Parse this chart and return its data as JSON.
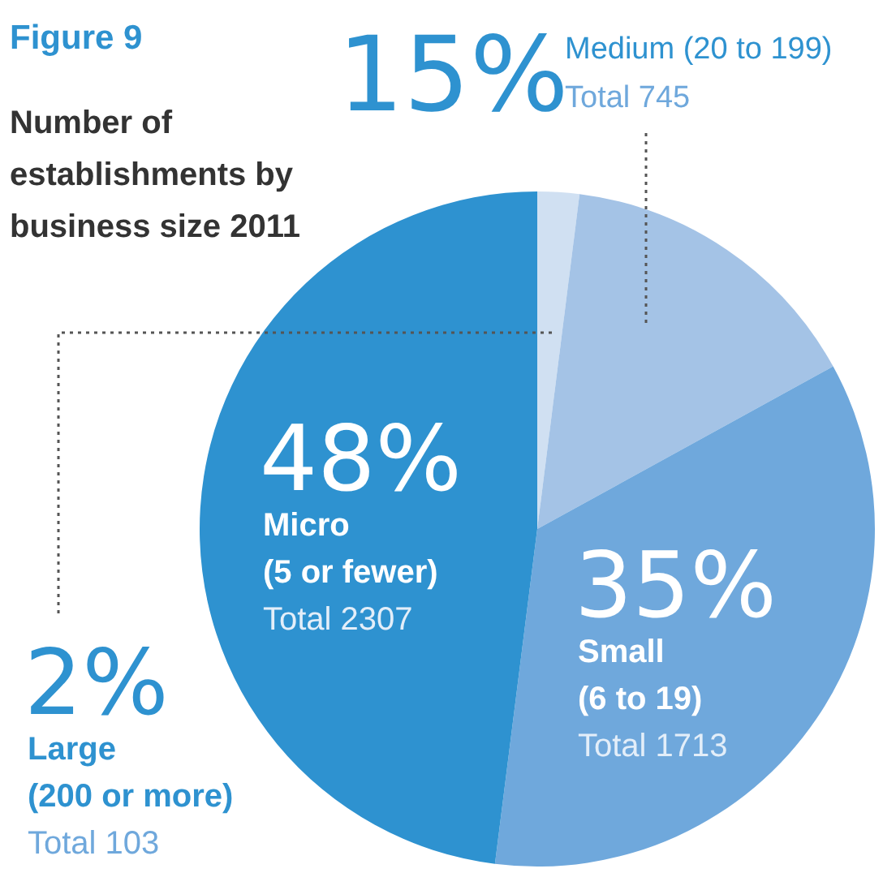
{
  "chart_data": {
    "type": "pie",
    "title": "Figure 9",
    "subtitle": "Number of establishments by business size 2011",
    "categories": [
      "Large (200 or more)",
      "Medium (20 to 199)",
      "Small (6 to 19)",
      "Micro (5 or fewer)"
    ],
    "values": [
      2,
      15,
      35,
      48
    ],
    "value_labels": [
      "2%",
      "15%",
      "35%",
      "48%"
    ],
    "colors": [
      "#d0e0f2",
      "#a4c3e6",
      "#6fa8dc",
      "#2e92d0"
    ],
    "annotations": [
      {
        "text": "Total 103",
        "x": "Large (200 or more)"
      },
      {
        "text": "Total 745",
        "x": "Medium (20 to 199)"
      },
      {
        "text": "Total 1713",
        "x": "Small (6 to 19)"
      },
      {
        "text": "Total 2307",
        "x": "Micro (5 or fewer)"
      }
    ],
    "legend": false
  }
}
